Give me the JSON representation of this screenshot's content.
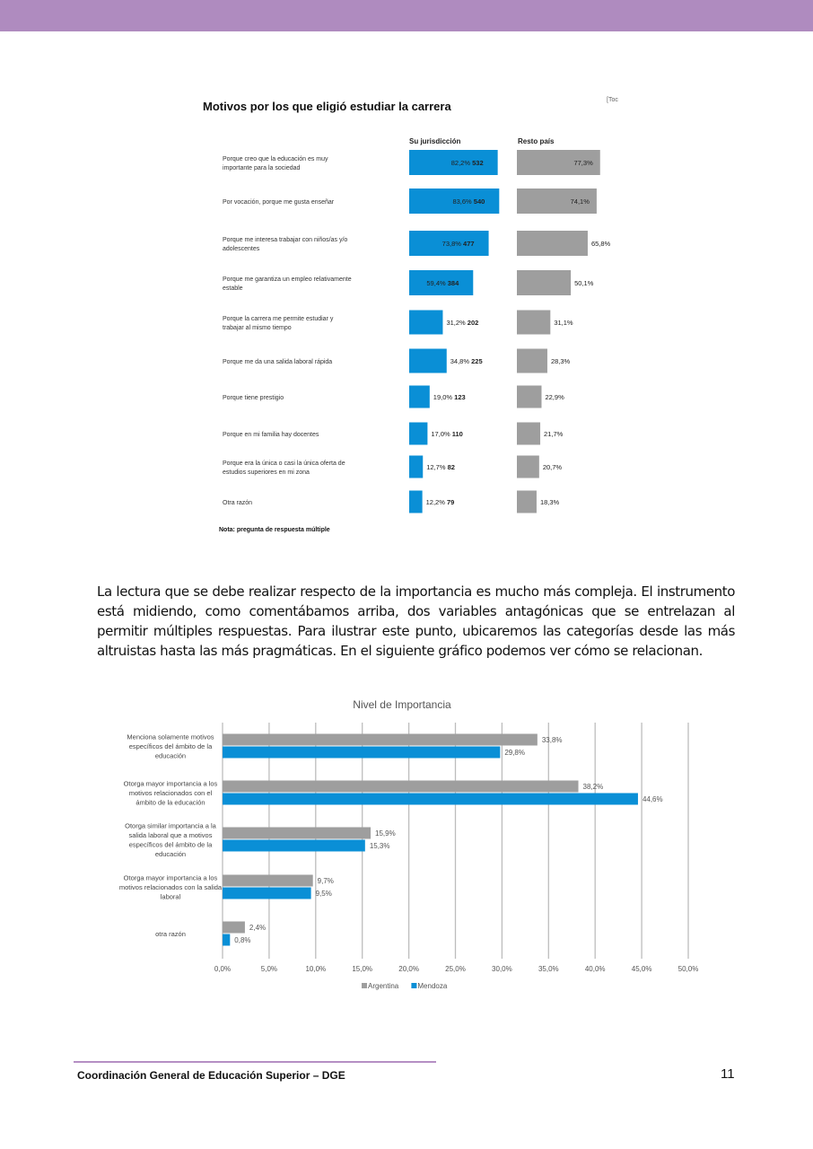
{
  "header": {
    "band_color": "#af8bbf"
  },
  "chart_data": [
    {
      "type": "bar",
      "orientation": "horizontal",
      "title": "Motivos por los que eligió estudiar la carrera",
      "corner_tag": "[Toc",
      "categories": [
        [
          "Porque creo que la educación es muy",
          "importante para la sociedad"
        ],
        [
          "Por vocación, porque me gusta enseñar"
        ],
        [
          "Porque me interesa trabajar con niños/as y/o",
          "adolescentes"
        ],
        [
          "Porque me garantiza un empleo relativamente",
          "estable"
        ],
        [
          "Porque la carrera me permite estudiar y",
          "trabajar al mismo tiempo"
        ],
        [
          "Porque me da una salida laboral rápida"
        ],
        [
          "Porque tiene prestigio"
        ],
        [
          "Porque en mi familia hay docentes"
        ],
        [
          "Porque era la única o casi la única oferta de",
          "estudios superiores en mi zona"
        ],
        [
          "Otra razón"
        ]
      ],
      "series": [
        {
          "name": "Su jurisdicción",
          "color": "#0a8fd6",
          "values": [
            82.2,
            83.6,
            73.8,
            59.4,
            31.2,
            34.8,
            19.0,
            17.0,
            12.7,
            12.2
          ],
          "labels": [
            "82,2%",
            "83,6%",
            "73,8%",
            "59,4%",
            "31,2%",
            "34,8%",
            "19,0%",
            "17,0%",
            "12,7%",
            "12,2%"
          ],
          "counts": [
            "532",
            "540",
            "477",
            "384",
            "202",
            "225",
            "123",
            "110",
            "82",
            "79"
          ]
        },
        {
          "name": "Resto país",
          "color": "#9e9e9e",
          "values": [
            77.3,
            74.1,
            65.8,
            50.1,
            31.1,
            28.3,
            22.9,
            21.7,
            20.7,
            18.3
          ],
          "labels": [
            "77,3%",
            "74,1%",
            "65,8%",
            "50,1%",
            "31,1%",
            "28,3%",
            "22,9%",
            "21,7%",
            "20,7%",
            "18,3%"
          ]
        }
      ],
      "note": "Nota: pregunta de respuesta múltiple"
    },
    {
      "type": "bar",
      "orientation": "horizontal",
      "title": "Nivel de Importancia",
      "categories": [
        [
          "Menciona solamente motivos",
          "específicos del ámbito de la",
          "educación"
        ],
        [
          "Otorga mayor importancia a los",
          "motivos relacionados con el",
          "ámbito de la educación"
        ],
        [
          "Otorga similar importancia a la",
          "salida laboral que a motivos",
          "específicos del ámbito de la",
          "educación"
        ],
        [
          "Otorga mayor importancia a los",
          "motivos relacionados con la salida",
          "laboral"
        ],
        [
          "otra razón"
        ]
      ],
      "series": [
        {
          "name": "Argentina",
          "color": "#9e9e9e",
          "values": [
            33.8,
            38.2,
            15.9,
            9.7,
            2.4
          ],
          "labels": [
            "33,8%",
            "38,2%",
            "15,9%",
            "9,7%",
            "2,4%"
          ]
        },
        {
          "name": "Mendoza",
          "color": "#0a8fd6",
          "values": [
            29.8,
            44.6,
            15.3,
            9.5,
            0.8
          ],
          "labels": [
            "29,8%",
            "44,6%",
            "15,3%",
            "9,5%",
            "0,8%"
          ]
        }
      ],
      "xlim": [
        0,
        50
      ],
      "xticks": [
        "0,0%",
        "5,0%",
        "10,0%",
        "15,0%",
        "20,0%",
        "25,0%",
        "30,0%",
        "35,0%",
        "40,0%",
        "45,0%",
        "50,0%"
      ],
      "grid": true,
      "legend": "bottom"
    }
  ],
  "paragraph": "La lectura que se debe realizar respecto de la importancia es mucho más compleja. El instrumento está midiendo, como comentábamos arriba, dos variables antagónicas que se entrelazan al permitir múltiples respuestas. Para ilustrar este punto, ubicaremos las categorías desde las más altruistas hasta las más pragmáticas. En el siguiente gráfico podemos ver cómo se relacionan.",
  "footer": {
    "text": "Coordinación General de Educación Superior – DGE",
    "page": "11"
  }
}
